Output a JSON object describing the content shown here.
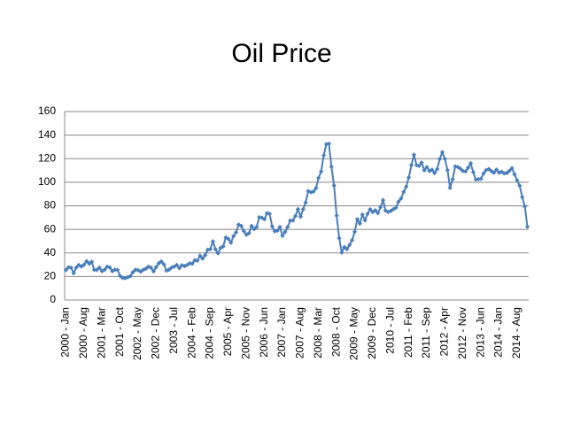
{
  "chart_data": {
    "type": "line",
    "title": "Oil Price",
    "categories": [
      "2000 - Jan",
      null,
      null,
      null,
      null,
      null,
      null,
      "2000 - Aug",
      null,
      null,
      null,
      null,
      null,
      null,
      "2001 - Mar",
      null,
      null,
      null,
      null,
      null,
      null,
      "2001 - Oct",
      null,
      null,
      null,
      null,
      null,
      null,
      "2002 - May",
      null,
      null,
      null,
      null,
      null,
      null,
      "2002 - Dec",
      null,
      null,
      null,
      null,
      null,
      null,
      "2003 - Jul",
      null,
      null,
      null,
      null,
      null,
      null,
      "2004 - Feb",
      null,
      null,
      null,
      null,
      null,
      null,
      "2004 - Sep",
      null,
      null,
      null,
      null,
      null,
      null,
      "2005 - Apr",
      null,
      null,
      null,
      null,
      null,
      null,
      "2005 - Nov",
      null,
      null,
      null,
      null,
      null,
      null,
      "2006 - Jun",
      null,
      null,
      null,
      null,
      null,
      null,
      "2007 - Jan",
      null,
      null,
      null,
      null,
      null,
      null,
      "2007 - Aug",
      null,
      null,
      null,
      null,
      null,
      null,
      "2008 - Mar",
      null,
      null,
      null,
      null,
      null,
      null,
      "2008 - Oct",
      null,
      null,
      null,
      null,
      null,
      null,
      "2009 - May",
      null,
      null,
      null,
      null,
      null,
      null,
      "2009 - Dec",
      null,
      null,
      null,
      null,
      null,
      null,
      "2010 - Jul",
      null,
      null,
      null,
      null,
      null,
      null,
      "2011 - Feb",
      null,
      null,
      null,
      null,
      null,
      null,
      "2011 - Sep",
      null,
      null,
      null,
      null,
      null,
      null,
      "2012 - Apr",
      null,
      null,
      null,
      null,
      null,
      null,
      "2012 - Nov",
      null,
      null,
      null,
      null,
      null,
      null,
      "2013 - Jun",
      null,
      null,
      null,
      null,
      null,
      null,
      "2014 - Jan",
      null,
      null,
      null,
      null,
      null,
      null,
      "2014 - Aug",
      null,
      null,
      null,
      null
    ],
    "values": [
      25.5,
      27.8,
      27.5,
      22.8,
      27.6,
      29.8,
      28.5,
      30.0,
      33.0,
      30.9,
      32.5,
      25.6,
      25.6,
      27.5,
      24.5,
      25.7,
      28.4,
      27.7,
      24.5,
      25.8,
      25.6,
      20.5,
      18.8,
      18.7,
      19.4,
      20.3,
      23.7,
      25.7,
      25.4,
      24.1,
      25.7,
      26.6,
      28.4,
      27.5,
      24.3,
      28.0,
      31.2,
      32.8,
      30.3,
      25.0,
      25.8,
      27.6,
      28.4,
      29.8,
      27.1,
      29.6,
      28.8,
      29.8,
      31.2,
      30.9,
      33.8,
      33.4,
      37.6,
      35.2,
      38.2,
      42.7,
      43.2,
      49.8,
      43.1,
      39.7,
      44.3,
      45.5,
      53.1,
      51.9,
      48.7,
      54.3,
      57.5,
      64.1,
      62.9,
      58.5,
      55.5,
      56.7,
      62.9,
      60.2,
      62.1,
      70.3,
      69.8,
      68.6,
      73.7,
      73.2,
      62.5,
      58.4,
      58.9,
      62.0,
      54.5,
      57.8,
      62.1,
      67.4,
      67.5,
      71.3,
      77.2,
      70.8,
      77.1,
      82.8,
      92.5,
      91.5,
      92.0,
      95.0,
      103.7,
      109.1,
      122.8,
      132.3,
      132.7,
      113.2,
      97.2,
      71.6,
      52.5,
      40.4,
      44.9,
      43.2,
      46.8,
      50.8,
      57.9,
      68.6,
      64.9,
      72.5,
      67.7,
      73.2,
      77.0,
      74.7,
      76.2,
      73.8,
      78.8,
      84.8,
      75.9,
      74.8,
      75.6,
      77.1,
      78.4,
      83.5,
      86.2,
      91.8,
      96.3,
      104.0,
      114.6,
      123.3,
      114.5,
      113.9,
      116.7,
      110.1,
      112.8,
      109.6,
      110.5,
      107.9,
      111.2,
      119.7,
      125.5,
      119.8,
      110.3,
      95.2,
      102.6,
      113.4,
      112.9,
      111.5,
      109.5,
      109.2,
      112.3,
      116.1,
      108.5,
      102.3,
      102.6,
      102.9,
      107.4,
      110.3,
      111.2,
      109.5,
      108.1,
      110.7,
      108.1,
      108.9,
      107.5,
      107.8,
      109.7,
      111.9,
      106.8,
      101.6,
      97.1,
      87.4,
      79.4,
      62.3
    ],
    "color": "#4a7ebb",
    "ylim": [
      0,
      160
    ],
    "yticks": [
      0,
      20,
      40,
      60,
      80,
      100,
      120,
      140,
      160
    ],
    "grid": true
  }
}
